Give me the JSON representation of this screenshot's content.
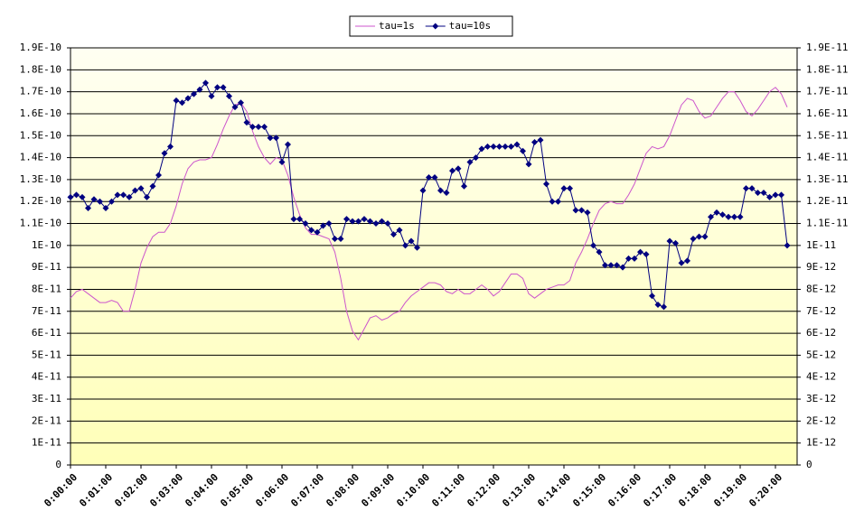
{
  "chart_data": {
    "type": "line",
    "categories": [
      "0:00:00",
      null,
      null,
      null,
      null,
      null,
      "0:01:00",
      null,
      null,
      null,
      null,
      null,
      "0:02:00",
      null,
      null,
      null,
      null,
      null,
      "0:03:00",
      null,
      null,
      null,
      null,
      null,
      "0:04:00",
      null,
      null,
      null,
      null,
      null,
      "0:05:00",
      null,
      null,
      null,
      null,
      null,
      "0:06:00",
      null,
      null,
      null,
      null,
      null,
      "0:07:00",
      null,
      null,
      null,
      null,
      null,
      "0:08:00",
      null,
      null,
      null,
      null,
      null,
      "0:09:00",
      null,
      null,
      null,
      null,
      null,
      "0:10:00",
      null,
      null,
      null,
      null,
      null,
      "0:11:00",
      null,
      null,
      null,
      null,
      null,
      "0:12:00",
      null,
      null,
      null,
      null,
      null,
      "0:13:00",
      null,
      null,
      null,
      null,
      null,
      "0:14:00",
      null,
      null,
      null,
      null,
      null,
      "0:15:00",
      null,
      null,
      null,
      null,
      null,
      "0:16:00",
      null,
      null,
      null,
      null,
      null,
      "0:17:00",
      null,
      null,
      null,
      null,
      null,
      "0:18:00",
      null,
      null,
      null,
      null,
      null,
      "0:19:00",
      null,
      null,
      null,
      null,
      null,
      "0:20:00",
      null,
      null
    ],
    "series": [
      {
        "name": "tau=1s",
        "color": "#cc55cc",
        "values": [
          7.6e-11,
          7.9e-11,
          8e-11,
          7.8e-11,
          7.6e-11,
          7.4e-11,
          7.4e-11,
          7.5e-11,
          7.4e-11,
          7e-11,
          7e-11,
          8e-11,
          9.2e-11,
          9.9e-11,
          1.04e-10,
          1.06e-10,
          1.06e-10,
          1.1e-10,
          1.18e-10,
          1.28e-10,
          1.35e-10,
          1.38e-10,
          1.39e-10,
          1.39e-10,
          1.4e-10,
          1.46e-10,
          1.53e-10,
          1.59e-10,
          1.64e-10,
          1.65e-10,
          1.61e-10,
          1.52e-10,
          1.45e-10,
          1.4e-10,
          1.37e-10,
          1.4e-10,
          1.39e-10,
          1.32e-10,
          1.22e-10,
          1.14e-10,
          1.08e-10,
          1.05e-10,
          1.05e-10,
          1.04e-10,
          1.03e-10,
          9.7e-11,
          8.5e-11,
          7e-11,
          6.1e-11,
          5.7e-11,
          6.2e-11,
          6.7e-11,
          6.8e-11,
          6.6e-11,
          6.7e-11,
          6.9e-11,
          7e-11,
          7.4e-11,
          7.7e-11,
          7.9e-11,
          8.1e-11,
          8.3e-11,
          8.3e-11,
          8.2e-11,
          7.9e-11,
          7.8e-11,
          8e-11,
          7.8e-11,
          7.8e-11,
          8e-11,
          8.2e-11,
          8e-11,
          7.7e-11,
          7.9e-11,
          8.3e-11,
          8.7e-11,
          8.7e-11,
          8.5e-11,
          7.8e-11,
          7.6e-11,
          7.8e-11,
          8e-11,
          8.1e-11,
          8.2e-11,
          8.2e-11,
          8.4e-11,
          9.2e-11,
          9.7e-11,
          1.03e-10,
          1.1e-10,
          1.16e-10,
          1.19e-10,
          1.2e-10,
          1.19e-10,
          1.19e-10,
          1.23e-10,
          1.28e-10,
          1.35e-10,
          1.42e-10,
          1.45e-10,
          1.44e-10,
          1.45e-10,
          1.5e-10,
          1.57e-10,
          1.64e-10,
          1.67e-10,
          1.66e-10,
          1.61e-10,
          1.58e-10,
          1.59e-10,
          1.63e-10,
          1.67e-10,
          1.7e-10,
          1.7e-10,
          1.66e-10,
          1.61e-10,
          1.59e-10,
          1.62e-10,
          1.66e-10,
          1.7e-10,
          1.72e-10,
          1.69e-10,
          1.63e-10
        ]
      },
      {
        "name": "tau=10s",
        "color": "#000080",
        "axis": "y2",
        "marker": "diamond",
        "values": [
          1.22e-11,
          1.23e-11,
          1.22e-11,
          1.17e-11,
          1.21e-11,
          1.2e-11,
          1.17e-11,
          1.2e-11,
          1.23e-11,
          1.23e-11,
          1.22e-11,
          1.25e-11,
          1.26e-11,
          1.22e-11,
          1.27e-11,
          1.32e-11,
          1.42e-11,
          1.45e-11,
          1.66e-11,
          1.65e-11,
          1.67e-11,
          1.69e-11,
          1.71e-11,
          1.74e-11,
          1.68e-11,
          1.72e-11,
          1.72e-11,
          1.68e-11,
          1.63e-11,
          1.65e-11,
          1.56e-11,
          1.54e-11,
          1.54e-11,
          1.54e-11,
          1.49e-11,
          1.49e-11,
          1.38e-11,
          1.46e-11,
          1.12e-11,
          1.12e-11,
          1.1e-11,
          1.07e-11,
          1.06e-11,
          1.09e-11,
          1.1e-11,
          1.03e-11,
          1.03e-11,
          1.12e-11,
          1.11e-11,
          1.11e-11,
          1.12e-11,
          1.11e-11,
          1.1e-11,
          1.11e-11,
          1.1e-11,
          1.05e-11,
          1.07e-11,
          1e-11,
          1.02e-11,
          9.9e-12,
          1.25e-11,
          1.31e-11,
          1.31e-11,
          1.25e-11,
          1.24e-11,
          1.34e-11,
          1.35e-11,
          1.27e-11,
          1.38e-11,
          1.4e-11,
          1.44e-11,
          1.45e-11,
          1.45e-11,
          1.45e-11,
          1.45e-11,
          1.45e-11,
          1.46e-11,
          1.43e-11,
          1.37e-11,
          1.47e-11,
          1.48e-11,
          1.28e-11,
          1.2e-11,
          1.2e-11,
          1.26e-11,
          1.26e-11,
          1.16e-11,
          1.16e-11,
          1.15e-11,
          1e-11,
          9.7e-12,
          9.1e-12,
          9.1e-12,
          9.1e-12,
          9e-12,
          9.4e-12,
          9.4e-12,
          9.7e-12,
          9.6e-12,
          7.7e-12,
          7.3e-12,
          7.2e-12,
          1.02e-11,
          1.01e-11,
          9.2e-12,
          9.3e-12,
          1.03e-11,
          1.04e-11,
          1.04e-11,
          1.13e-11,
          1.15e-11,
          1.14e-11,
          1.13e-11,
          1.13e-11,
          1.13e-11,
          1.26e-11,
          1.26e-11,
          1.24e-11,
          1.24e-11,
          1.22e-11,
          1.23e-11,
          1.23e-11,
          1e-11
        ]
      }
    ],
    "ylim": [
      0,
      1.9e-10
    ],
    "yticks": [
      0,
      {
        "value": 1e-11,
        "label": "1E-11"
      },
      {
        "value": 2e-11,
        "label": "2E-11"
      },
      {
        "value": 3e-11,
        "label": "3E-11"
      },
      {
        "value": 4e-11,
        "label": "4E-11"
      },
      {
        "value": 5e-11,
        "label": "5E-11"
      },
      {
        "value": 6e-11,
        "label": "6E-11"
      },
      {
        "value": 7e-11,
        "label": "7E-11"
      },
      {
        "value": 8e-11,
        "label": "8E-11"
      },
      {
        "value": 9e-11,
        "label": "9E-11"
      },
      {
        "value": 1e-10,
        "label": "1E-10"
      },
      {
        "value": 1.1e-10,
        "label": "1.1E-10"
      },
      {
        "value": 1.2e-10,
        "label": "1.2E-10"
      },
      {
        "value": 1.3e-10,
        "label": "1.3E-10"
      },
      {
        "value": 1.4e-10,
        "label": "1.4E-10"
      },
      {
        "value": 1.5e-10,
        "label": "1.5E-10"
      },
      {
        "value": 1.6e-10,
        "label": "1.6E-10"
      },
      {
        "value": 1.7e-10,
        "label": "1.7E-10"
      },
      {
        "value": 1.8e-10,
        "label": "1.8E-10"
      },
      {
        "value": 1.9e-10,
        "label": "1.9E-10"
      }
    ],
    "y2lim": [
      0,
      1.9e-11
    ],
    "y2ticks": [
      0,
      {
        "value": 1e-12,
        "label": "1E-12"
      },
      {
        "value": 2e-12,
        "label": "2E-12"
      },
      {
        "value": 3e-12,
        "label": "3E-12"
      },
      {
        "value": 4e-12,
        "label": "4E-12"
      },
      {
        "value": 5e-12,
        "label": "5E-12"
      },
      {
        "value": 6e-12,
        "label": "6E-12"
      },
      {
        "value": 7e-12,
        "label": "7E-12"
      },
      {
        "value": 8e-12,
        "label": "8E-12"
      },
      {
        "value": 9e-12,
        "label": "9E-12"
      },
      {
        "value": 1e-11,
        "label": "1E-11"
      },
      {
        "value": 1.1e-11,
        "label": "1.1E-11"
      },
      {
        "value": 1.2e-11,
        "label": "1.2E-11"
      },
      {
        "value": 1.3e-11,
        "label": "1.3E-11"
      },
      {
        "value": 1.4e-11,
        "label": "1.4E-11"
      },
      {
        "value": 1.5e-11,
        "label": "1.5E-11"
      },
      {
        "value": 1.6e-11,
        "label": "1.6E-11"
      },
      {
        "value": 1.7e-11,
        "label": "1.7E-11"
      },
      {
        "value": 1.8e-11,
        "label": "1.8E-11"
      },
      {
        "value": 1.9e-11,
        "label": "1.9E-11"
      }
    ],
    "grid": true,
    "legend": "top"
  }
}
